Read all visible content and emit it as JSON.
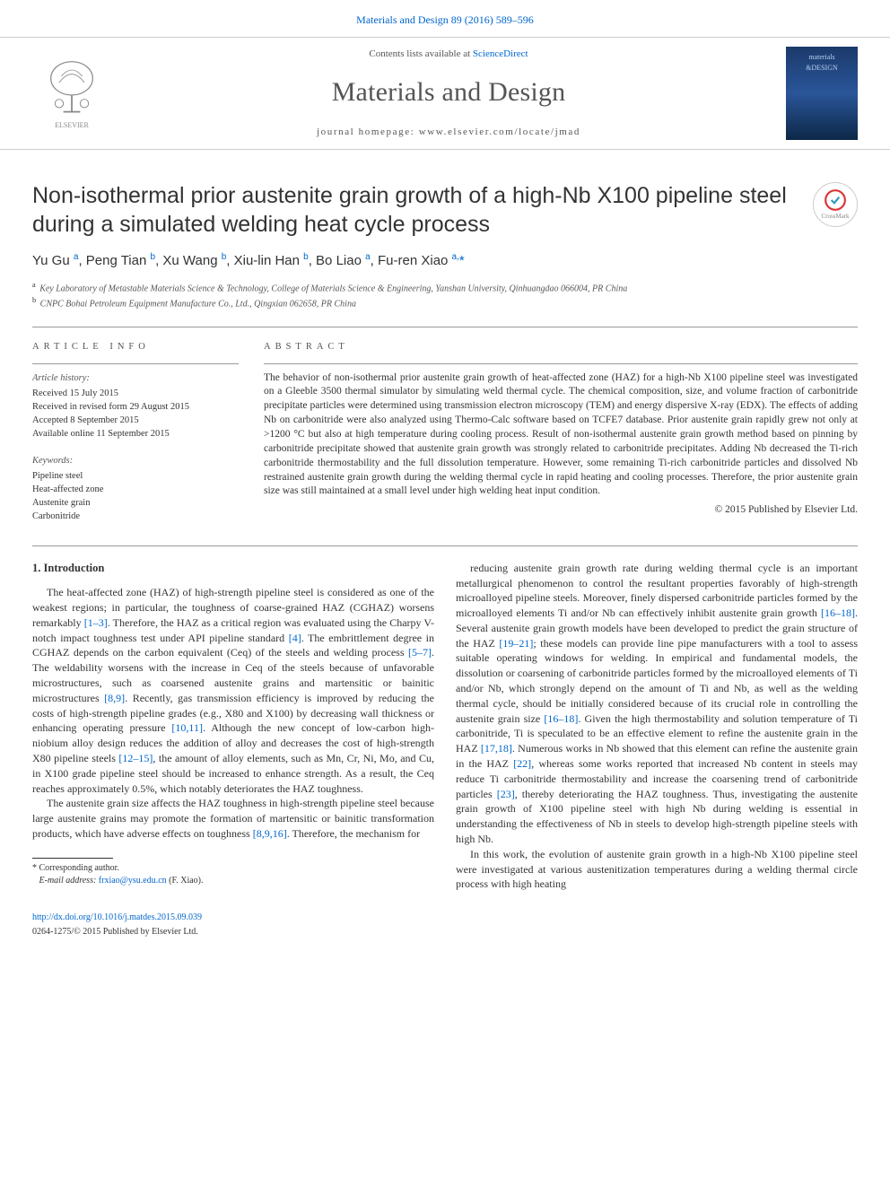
{
  "top": {
    "journal_ref": "Materials and Design 89 (2016) 589–596",
    "url": "Materials and Design 89 (2016) 589–596"
  },
  "header": {
    "contents_prefix": "Contents lists available at ",
    "contents_link": "ScienceDirect",
    "journal_name": "Materials and Design",
    "homepage_prefix": "journal homepage: ",
    "homepage_url": "www.elsevier.com/locate/jmad",
    "elsevier_label": "ELSEVIER",
    "cover_label_1": "materials",
    "cover_label_2": "&DESIGN"
  },
  "crossmark_label": "CrossMark",
  "title": "Non-isothermal prior austenite grain growth of a high-Nb X100 pipeline steel during a simulated welding heat cycle process",
  "authors_html": "Yu Gu <sup>a</sup>, Peng Tian <sup>b</sup>, Xu Wang <sup>b</sup>, Xiu-lin Han <sup>b</sup>, Bo Liao <sup>a</sup>, Fu-ren Xiao <sup>a,</sup><span class='ast'>*</span>",
  "affiliations": [
    {
      "sup": "a",
      "text": "Key Laboratory of Metastable Materials Science & Technology, College of Materials Science & Engineering, Yanshan University, Qinhuangdao 066004, PR China"
    },
    {
      "sup": "b",
      "text": "CNPC Bohai Petroleum Equipment Manufacture Co., Ltd., Qingxian 062658, PR China"
    }
  ],
  "info": {
    "heading": "article info",
    "history_heading": "Article history:",
    "history": [
      "Received 15 July 2015",
      "Received in revised form 29 August 2015",
      "Accepted 8 September 2015",
      "Available online 11 September 2015"
    ],
    "keywords_heading": "Keywords:",
    "keywords": [
      "Pipeline steel",
      "Heat-affected zone",
      "Austenite grain",
      "Carbonitride"
    ]
  },
  "abstract": {
    "heading": "abstract",
    "text": "The behavior of non-isothermal prior austenite grain growth of heat-affected zone (HAZ) for a high-Nb X100 pipeline steel was investigated on a Gleeble 3500 thermal simulator by simulating weld thermal cycle. The chemical composition, size, and volume fraction of carbonitride precipitate particles were determined using transmission electron microscopy (TEM) and energy dispersive X-ray (EDX). The effects of adding Nb on carbonitride were also analyzed using Thermo-Calc software based on TCFE7 database. Prior austenite grain rapidly grew not only at >1200 °C but also at high temperature during cooling process. Result of non-isothermal austenite grain growth method based on pinning by carbonitride precipitate showed that austenite grain growth was strongly related to carbonitride precipitates. Adding Nb decreased the Ti-rich carbonitride thermostability and the full dissolution temperature. However, some remaining Ti-rich carbonitride particles and dissolved Nb restrained austenite grain growth during the welding thermal cycle in rapid heating and cooling processes. Therefore, the prior austenite grain size was still maintained at a small level under high welding heat input condition.",
    "copyright": "© 2015 Published by Elsevier Ltd."
  },
  "body": {
    "section_heading": "1. Introduction",
    "left": [
      "The heat-affected zone (HAZ) of high-strength pipeline steel is considered as one of the weakest regions; in particular, the toughness of coarse-grained HAZ (CGHAZ) worsens remarkably <span class='ref'>[1–3]</span>. Therefore, the HAZ as a critical region was evaluated using the Charpy V-notch impact toughness test under API pipeline standard <span class='ref'>[4]</span>. The embrittlement degree in CGHAZ depends on the carbon equivalent (Ceq) of the steels and welding process <span class='ref'>[5–7]</span>. The weldability worsens with the increase in Ceq of the steels because of unfavorable microstructures, such as coarsened austenite grains and martensitic or bainitic microstructures <span class='ref'>[8,9]</span>. Recently, gas transmission efficiency is improved by reducing the costs of high-strength pipeline grades (e.g., X80 and X100) by decreasing wall thickness or enhancing operating pressure <span class='ref'>[10,11]</span>. Although the new concept of low-carbon high-niobium alloy design reduces the addition of alloy and decreases the cost of high-strength X80 pipeline steels <span class='ref'>[12–15]</span>, the amount of alloy elements, such as Mn, Cr, Ni, Mo, and Cu, in X100 grade pipeline steel should be increased to enhance strength. As a result, the Ceq reaches approximately 0.5%, which notably deteriorates the HAZ toughness.",
      "The austenite grain size affects the HAZ toughness in high-strength pipeline steel because large austenite grains may promote the formation of martensitic or bainitic transformation products, which have adverse effects on toughness <span class='ref'>[8,9,16]</span>. Therefore, the mechanism for"
    ],
    "right": [
      "reducing austenite grain growth rate during welding thermal cycle is an important metallurgical phenomenon to control the resultant properties favorably of high-strength microalloyed pipeline steels. Moreover, finely dispersed carbonitride particles formed by the microalloyed elements Ti and/or Nb can effectively inhibit austenite grain growth <span class='ref'>[16–18]</span>. Several austenite grain growth models have been developed to predict the grain structure of the HAZ <span class='ref'>[19–21]</span>; these models can provide line pipe manufacturers with a tool to assess suitable operating windows for welding. In empirical and fundamental models, the dissolution or coarsening of carbonitride particles formed by the microalloyed elements of Ti and/or Nb, which strongly depend on the amount of Ti and Nb, as well as the welding thermal cycle, should be initially considered because of its crucial role in controlling the austenite grain size <span class='ref'>[16–18]</span>. Given the high thermostability and solution temperature of Ti carbonitride, Ti is speculated to be an effective element to refine the austenite grain in the HAZ <span class='ref'>[17,18]</span>. Numerous works in Nb showed that this element can refine the austenite grain in the HAZ <span class='ref'>[22]</span>, whereas some works reported that increased Nb content in steels may reduce Ti carbonitride thermostability and increase the coarsening trend of carbonitride particles <span class='ref'>[23]</span>, thereby deteriorating the HAZ toughness. Thus, investigating the austenite grain growth of X100 pipeline steel with high Nb during welding is essential in understanding the effectiveness of Nb in steels to develop high-strength pipeline steels with high Nb.",
      "In this work, the evolution of austenite grain growth in a high-Nb X100 pipeline steel were investigated at various austenitization temperatures during a welding thermal circle process with high heating"
    ],
    "corr_label": "* Corresponding author.",
    "corr_email_label": "E-mail address:",
    "corr_email": "frxiao@ysu.edu.cn",
    "corr_name": "(F. Xiao)."
  },
  "footer": {
    "doi": "http://dx.doi.org/10.1016/j.matdes.2015.09.039",
    "issn": "0264-1275/© 2015 Published by Elsevier Ltd."
  },
  "colors": {
    "link": "#0066cc",
    "text": "#333333",
    "muted": "#555555",
    "rule": "#cccccc"
  }
}
